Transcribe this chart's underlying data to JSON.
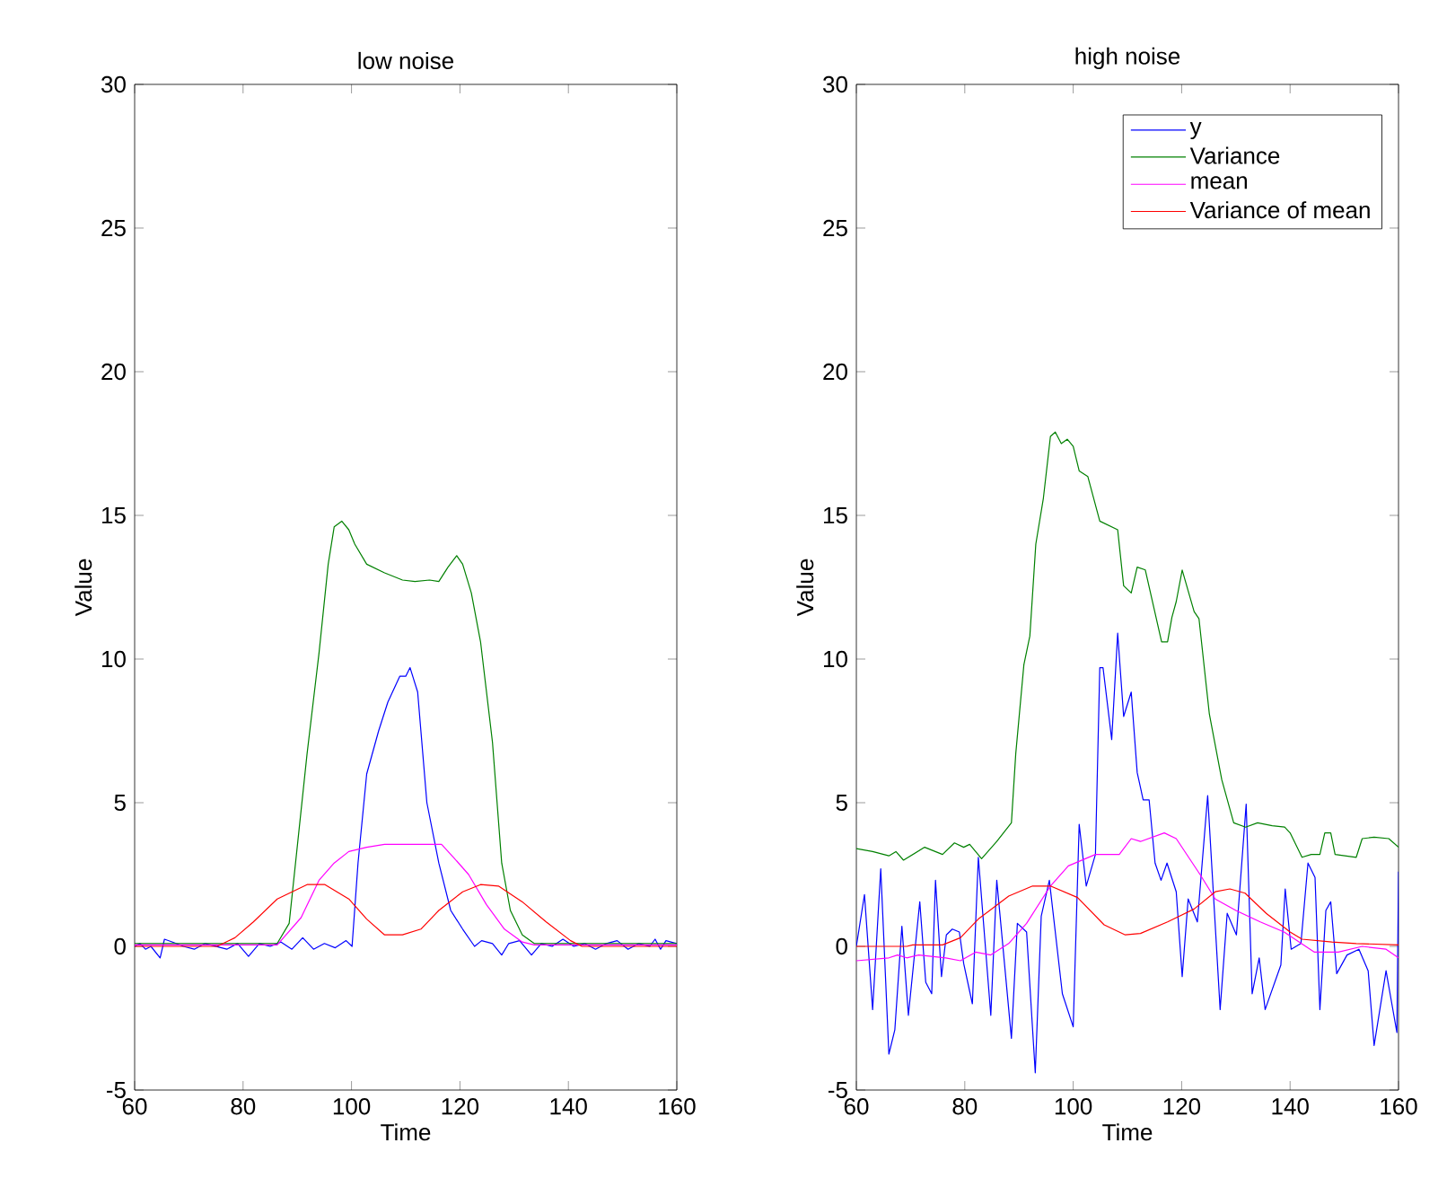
{
  "chart_data": [
    {
      "type": "line",
      "title": "low noise",
      "xlabel": "Time",
      "ylabel": "Value",
      "xlim": [
        60,
        160
      ],
      "ylim": [
        -5,
        30
      ],
      "xticks": [
        60,
        80,
        100,
        120,
        140,
        160
      ],
      "yticks": [
        -5,
        0,
        5,
        10,
        15,
        20,
        25,
        30
      ],
      "grid": false,
      "series": [
        {
          "color": "#0000ff",
          "x": [
            60,
            61,
            62,
            63,
            64.7,
            65.5,
            67,
            69,
            71,
            73,
            75,
            77,
            79,
            81,
            83,
            85,
            87,
            89,
            91,
            93,
            95,
            97,
            99,
            100.1,
            101.2,
            102.8,
            105,
            106.7,
            108.9,
            110,
            110.8,
            112.2,
            113.9,
            116.1,
            118.3,
            120.5,
            122.7,
            124,
            126,
            127.7,
            129,
            131,
            133.2,
            135,
            137,
            139,
            141,
            143,
            145,
            147,
            149,
            151,
            153,
            155,
            156,
            157,
            158,
            160
          ],
          "values": [
            0.0,
            0.1,
            -0.1,
            0.0,
            -0.4,
            0.25,
            0.15,
            0.0,
            -0.1,
            0.1,
            0.0,
            -0.1,
            0.1,
            -0.35,
            0.1,
            0.0,
            0.15,
            -0.1,
            0.3,
            -0.1,
            0.1,
            -0.05,
            0.2,
            0.0,
            2.9,
            6.0,
            7.5,
            8.5,
            9.4,
            9.4,
            9.7,
            8.85,
            5.0,
            2.9,
            1.25,
            0.6,
            0.0,
            0.2,
            0.1,
            -0.3,
            0.1,
            0.2,
            -0.3,
            0.1,
            0.0,
            0.25,
            0.0,
            0.1,
            -0.1,
            0.1,
            0.2,
            -0.1,
            0.1,
            0.0,
            0.25,
            -0.1,
            0.2,
            0.1
          ]
        },
        {
          "color": "#008000",
          "x": [
            60,
            86.3,
            88.5,
            91.8,
            94,
            95.7,
            96.8,
            98.2,
            99.5,
            100.6,
            102.8,
            106.1,
            109.4,
            111.7,
            114.4,
            116.1,
            117.8,
            119.4,
            120.5,
            122.1,
            123.8,
            126,
            127.7,
            129.3,
            131.5,
            133.7,
            160
          ],
          "values": [
            0.1,
            0.1,
            0.8,
            6.7,
            10.2,
            13.3,
            14.6,
            14.8,
            14.5,
            14.0,
            13.3,
            13.0,
            12.75,
            12.7,
            12.75,
            12.7,
            13.2,
            13.6,
            13.3,
            12.3,
            10.6,
            7.1,
            2.9,
            1.25,
            0.4,
            0.1,
            0.1
          ]
        },
        {
          "color": "#ff00ff",
          "x": [
            60,
            86.3,
            90.7,
            94,
            96.8,
            99.5,
            102.8,
            106.1,
            116.6,
            118.8,
            121.6,
            124.9,
            128.2,
            131.5,
            133.7,
            160
          ],
          "values": [
            0.05,
            0.05,
            1.0,
            2.3,
            2.9,
            3.3,
            3.45,
            3.55,
            3.55,
            3.1,
            2.5,
            1.45,
            0.6,
            0.15,
            0.05,
            0.05
          ]
        },
        {
          "color": "#ff0000",
          "x": [
            60,
            75.2,
            78.5,
            81.9,
            86.3,
            91.8,
            95.1,
            99.5,
            102.8,
            106.1,
            109.4,
            112.8,
            116.1,
            120.5,
            123.8,
            127.1,
            131.5,
            135.9,
            140.4,
            142.5,
            160
          ],
          "values": [
            0.0,
            0.0,
            0.3,
            0.85,
            1.65,
            2.15,
            2.15,
            1.65,
            0.95,
            0.4,
            0.4,
            0.6,
            1.25,
            1.9,
            2.15,
            2.1,
            1.55,
            0.85,
            0.2,
            0.0,
            0.0
          ]
        }
      ]
    },
    {
      "type": "line",
      "title": "high noise",
      "xlabel": "Time",
      "ylabel": "Value",
      "xlim": [
        60,
        160
      ],
      "ylim": [
        -5,
        30
      ],
      "xticks": [
        60,
        80,
        100,
        120,
        140,
        160
      ],
      "yticks": [
        -5,
        0,
        5,
        10,
        15,
        20,
        25,
        30
      ],
      "grid": false,
      "legend": "top right",
      "series": [
        {
          "name": "y",
          "color": "#0000ff",
          "x": [
            60,
            61.5,
            63,
            64.5,
            66,
            67.1,
            68.4,
            69.6,
            71.7,
            72.8,
            73.9,
            74.6,
            75.7,
            76.6,
            77.7,
            79,
            79.8,
            81.4,
            82.5,
            84.8,
            85.9,
            88.6,
            89.7,
            91.4,
            93,
            94.1,
            95.6,
            98,
            100,
            101.1,
            102.4,
            104.1,
            104.9,
            105.5,
            107.1,
            108.2,
            109.3,
            110.7,
            111.8,
            112.9,
            114,
            115.1,
            116.2,
            117.3,
            119,
            120.1,
            121.2,
            122.9,
            124.8,
            127.1,
            128.4,
            130.1,
            131.9,
            133,
            134.3,
            135.4,
            138.3,
            139.1,
            140.2,
            142,
            143.3,
            144.6,
            145.5,
            146.6,
            147.5,
            148.6,
            150.5,
            152.7,
            154.4,
            155.5,
            157.7,
            159.7,
            160
          ],
          "values": [
            0.0,
            1.8,
            -2.2,
            2.7,
            -3.75,
            -2.9,
            0.7,
            -2.4,
            1.55,
            -1.25,
            -1.65,
            2.3,
            -1.05,
            0.4,
            0.6,
            0.5,
            -0.6,
            -2.0,
            3.1,
            -2.4,
            2.3,
            -3.2,
            0.8,
            0.5,
            -4.4,
            1.05,
            2.3,
            -1.65,
            -2.8,
            4.25,
            2.1,
            3.2,
            9.7,
            9.7,
            7.2,
            10.9,
            8.0,
            8.85,
            6.05,
            5.1,
            5.1,
            2.9,
            2.3,
            2.9,
            1.9,
            -1.05,
            1.65,
            0.85,
            5.25,
            -2.2,
            1.15,
            0.4,
            4.95,
            -1.65,
            -0.4,
            -2.2,
            -0.65,
            2.0,
            -0.1,
            0.1,
            2.9,
            2.4,
            -2.2,
            1.25,
            1.55,
            -0.95,
            -0.3,
            -0.1,
            -0.85,
            -3.45,
            -0.85,
            -3.0,
            2.6
          ]
        },
        {
          "name": "Variance",
          "color": "#008000",
          "x": [
            60,
            63,
            66,
            67.3,
            68.7,
            72.6,
            75.9,
            78.1,
            79.8,
            80.9,
            83.1,
            85.9,
            88.6,
            89.4,
            90.9,
            92,
            93.1,
            94.5,
            95.8,
            96.7,
            97.8,
            98.9,
            100,
            101.1,
            102.7,
            104.9,
            108.2,
            109.3,
            110.7,
            111.8,
            113.3,
            116.3,
            117.4,
            118.2,
            119,
            120.1,
            122.3,
            123.2,
            125.1,
            126.5,
            127.4,
            129.6,
            131.8,
            134,
            136.7,
            139,
            140,
            142.2,
            143.9,
            145.5,
            146.4,
            147.5,
            148.3,
            152.2,
            153.3,
            155.5,
            158.2,
            160
          ],
          "values": [
            3.4,
            3.3,
            3.15,
            3.3,
            3.0,
            3.45,
            3.2,
            3.6,
            3.45,
            3.55,
            3.05,
            3.65,
            4.3,
            6.7,
            9.8,
            10.8,
            14.0,
            15.6,
            17.75,
            17.9,
            17.5,
            17.65,
            17.4,
            16.55,
            16.35,
            14.8,
            14.5,
            12.55,
            12.3,
            13.2,
            13.1,
            10.6,
            10.6,
            11.45,
            12.0,
            13.1,
            11.65,
            11.4,
            8.1,
            6.7,
            5.8,
            4.3,
            4.15,
            4.3,
            4.2,
            4.15,
            3.95,
            3.1,
            3.2,
            3.2,
            3.95,
            3.95,
            3.2,
            3.1,
            3.75,
            3.8,
            3.75,
            3.45
          ]
        },
        {
          "name": "mean",
          "color": "#ff00ff",
          "x": [
            60,
            66,
            67.6,
            69.3,
            71.5,
            76.5,
            79.2,
            82,
            84.8,
            88.1,
            91.4,
            95.8,
            99.1,
            104.1,
            108.5,
            110.7,
            112.4,
            116.8,
            119,
            123.4,
            126.2,
            130,
            134.5,
            138.9,
            144.5,
            148.9,
            153.3,
            157.7,
            160
          ],
          "values": [
            -0.5,
            -0.4,
            -0.3,
            -0.4,
            -0.3,
            -0.4,
            -0.5,
            -0.2,
            -0.3,
            0.1,
            0.8,
            2.1,
            2.8,
            3.2,
            3.2,
            3.75,
            3.65,
            3.95,
            3.75,
            2.5,
            1.65,
            1.25,
            0.85,
            0.5,
            -0.2,
            -0.2,
            0.0,
            -0.1,
            -0.4
          ]
        },
        {
          "name": "Variance of mean",
          "color": "#ff0000",
          "x": [
            60,
            69.3,
            70.4,
            75.9,
            79.2,
            82.5,
            88.1,
            92.5,
            95.8,
            100.8,
            105.7,
            109.6,
            112.4,
            117.4,
            122.3,
            126.2,
            128.9,
            131.7,
            135.6,
            140,
            142.2,
            147.7,
            152.2,
            160
          ],
          "values": [
            0.0,
            0.0,
            0.05,
            0.05,
            0.3,
            0.95,
            1.75,
            2.1,
            2.1,
            1.7,
            0.75,
            0.4,
            0.45,
            0.85,
            1.3,
            1.9,
            2.0,
            1.85,
            1.15,
            0.5,
            0.25,
            0.15,
            0.1,
            0.05
          ]
        }
      ]
    }
  ]
}
